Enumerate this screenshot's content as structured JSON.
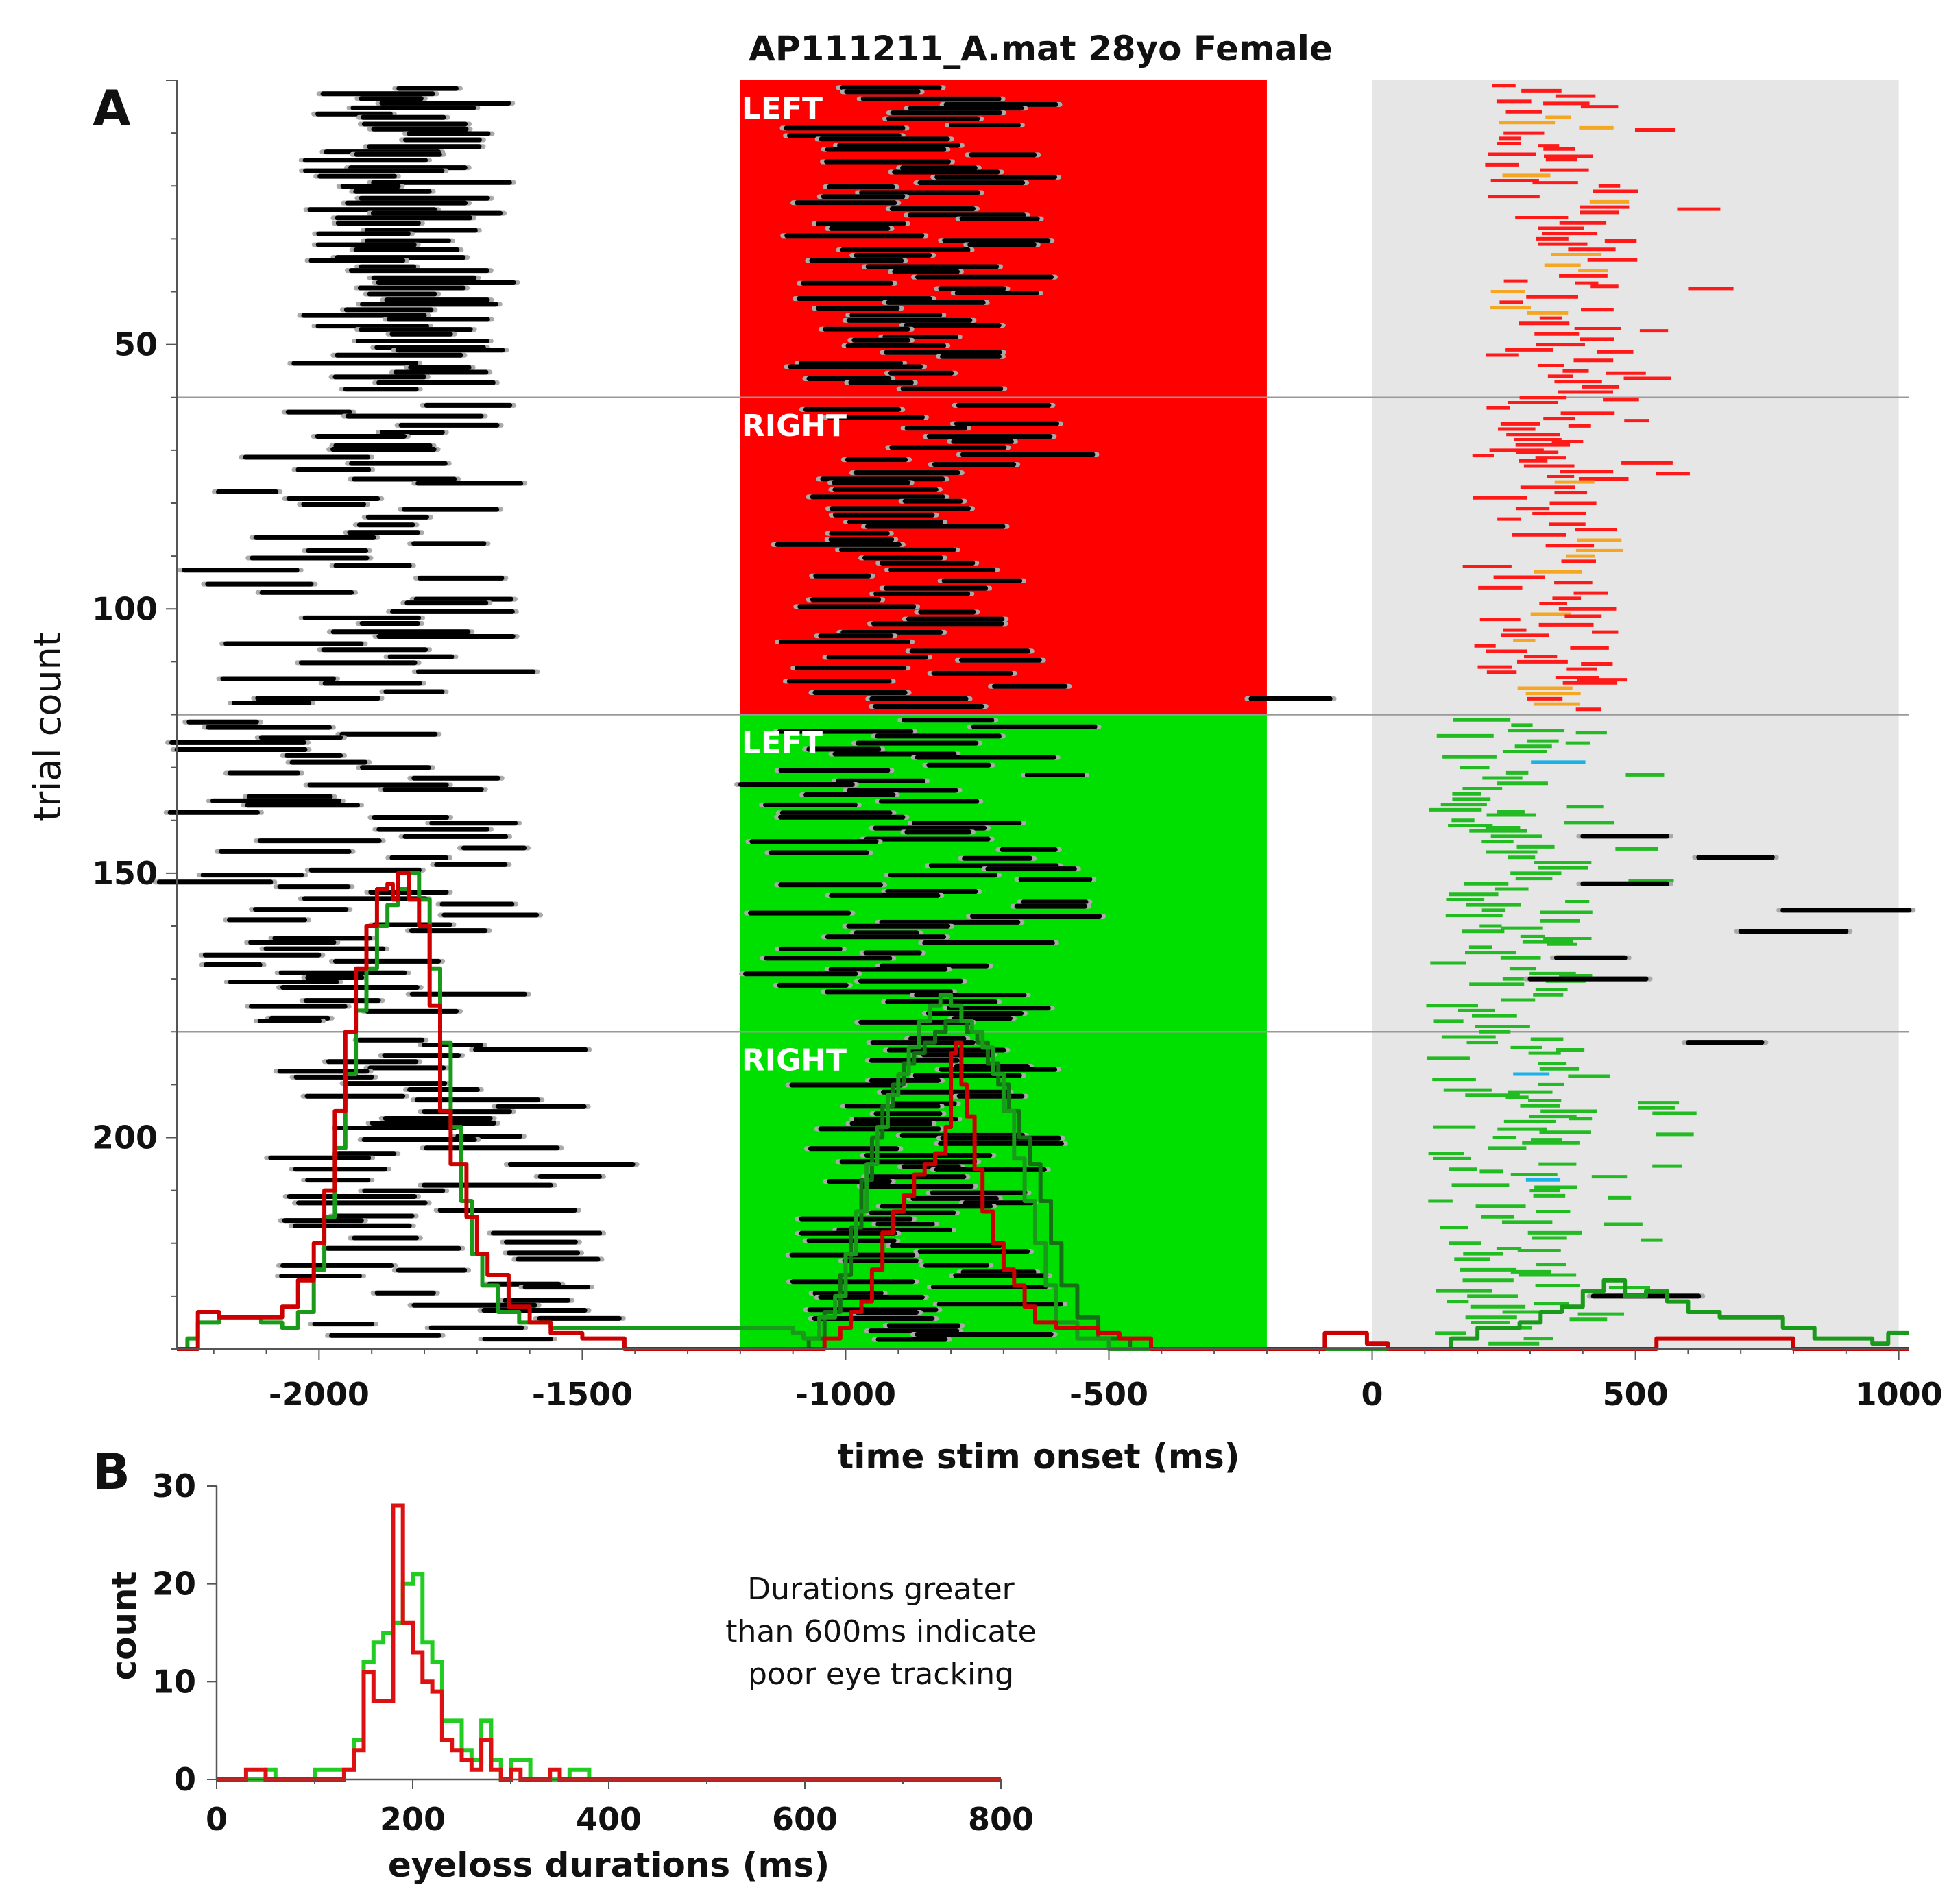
{
  "chart_data": [
    {
      "panel": "A",
      "type": "raster",
      "title": "AP111211_A.mat 28yo Female",
      "xlabel": "time stim onset (ms)",
      "ylabel": "trial count",
      "xlim": [
        -2270,
        1020
      ],
      "ylim": [
        0,
        240
      ],
      "x_ticks": [
        -2000,
        -1500,
        -1000,
        -500,
        0,
        500,
        1000
      ],
      "y_ticks": [
        50,
        100,
        150,
        200
      ],
      "blocks": [
        {
          "label": "LEFT",
          "trial_start": 0,
          "trial_end": 60,
          "color": "#ff0000"
        },
        {
          "label": "RIGHT",
          "trial_start": 60,
          "trial_end": 120,
          "color": "#ff0000"
        },
        {
          "label": "LEFT",
          "trial_start": 120,
          "trial_end": 180,
          "color": "#00e000"
        },
        {
          "label": "RIGHT",
          "trial_start": 180,
          "trial_end": 240,
          "color": "#00e000"
        }
      ],
      "stim_window": [
        -1200,
        -200
      ],
      "response_window": [
        0,
        1000
      ],
      "response_bg_color": "#e6e6e6",
      "block_separator_trials": [
        60,
        120,
        180
      ],
      "series_colors": {
        "eyeloss": "#000000",
        "eyeloss_edge": "#aaaaaa",
        "response_red": "#ff1a1a",
        "response_orange": "#f5a623",
        "response_green": "#22bb22",
        "response_blue": "#1ab0e8",
        "density_red": "#cc0000",
        "density_green": "#1a9a1a",
        "density_darkgreen": "#157015"
      },
      "density_curves": [
        {
          "name": "red",
          "points": [
            [
              -2270,
              240
            ],
            [
              -2230,
              233
            ],
            [
              -2190,
              234
            ],
            [
              -2150,
              234
            ],
            [
              -2110,
              234
            ],
            [
              -2070,
              232
            ],
            [
              -2040,
              227
            ],
            [
              -2010,
              220
            ],
            [
              -1990,
              210
            ],
            [
              -1970,
              195
            ],
            [
              -1950,
              180
            ],
            [
              -1930,
              168
            ],
            [
              -1910,
              160
            ],
            [
              -1890,
              153
            ],
            [
              -1870,
              152
            ],
            [
              -1860,
              155
            ],
            [
              -1850,
              150
            ],
            [
              -1830,
              155
            ],
            [
              -1810,
              160
            ],
            [
              -1790,
              175
            ],
            [
              -1770,
              195
            ],
            [
              -1750,
              205
            ],
            [
              -1720,
              215
            ],
            [
              -1700,
              222
            ],
            [
              -1680,
              226
            ],
            [
              -1640,
              232
            ],
            [
              -1600,
              235
            ],
            [
              -1560,
              237
            ],
            [
              -1500,
              238
            ],
            [
              -1420,
              240
            ],
            [
              -1100,
              240
            ],
            [
              -1060,
              240
            ],
            [
              -1040,
              238
            ],
            [
              -1010,
              236
            ],
            [
              -990,
              233
            ],
            [
              -970,
              231
            ],
            [
              -950,
              225
            ],
            [
              -930,
              218
            ],
            [
              -910,
              214
            ],
            [
              -890,
              211
            ],
            [
              -870,
              207
            ],
            [
              -850,
              205
            ],
            [
              -830,
              203
            ],
            [
              -810,
              198
            ],
            [
              -800,
              184
            ],
            [
              -790,
              182
            ],
            [
              -780,
              190
            ],
            [
              -770,
              196
            ],
            [
              -755,
              206
            ],
            [
              -740,
              214
            ],
            [
              -720,
              220
            ],
            [
              -700,
              225
            ],
            [
              -680,
              228
            ],
            [
              -660,
              232
            ],
            [
              -640,
              235
            ],
            [
              -600,
              236
            ],
            [
              -560,
              236
            ],
            [
              -520,
              237
            ],
            [
              -480,
              238
            ],
            [
              -420,
              240
            ],
            [
              -100,
              240
            ],
            [
              -90,
              237
            ],
            [
              -40,
              237
            ],
            [
              -10,
              239
            ],
            [
              30,
              240
            ],
            [
              500,
              240
            ],
            [
              540,
              238
            ],
            [
              780,
              238
            ],
            [
              800,
              240
            ],
            [
              1020,
              240
            ]
          ]
        },
        {
          "name": "green",
          "points": [
            [
              -2270,
              240
            ],
            [
              -2250,
              238
            ],
            [
              -2230,
              235
            ],
            [
              -2190,
              234
            ],
            [
              -2150,
              234
            ],
            [
              -2110,
              235
            ],
            [
              -2070,
              236
            ],
            [
              -2040,
              233
            ],
            [
              -2010,
              225
            ],
            [
              -1990,
              215
            ],
            [
              -1970,
              202
            ],
            [
              -1950,
              188
            ],
            [
              -1930,
              176
            ],
            [
              -1910,
              168
            ],
            [
              -1890,
              160
            ],
            [
              -1870,
              156
            ],
            [
              -1850,
              153
            ],
            [
              -1830,
              150
            ],
            [
              -1810,
              155
            ],
            [
              -1790,
              168
            ],
            [
              -1770,
              182
            ],
            [
              -1750,
              198
            ],
            [
              -1730,
              212
            ],
            [
              -1710,
              222
            ],
            [
              -1690,
              228
            ],
            [
              -1660,
              233
            ],
            [
              -1620,
              235
            ],
            [
              -1560,
              236
            ],
            [
              -1500,
              236
            ],
            [
              -1100,
              237
            ],
            [
              -1080,
              238
            ],
            [
              -1050,
              234
            ],
            [
              -1020,
              230
            ],
            [
              -1000,
              222
            ],
            [
              -980,
              214
            ],
            [
              -960,
              205
            ],
            [
              -940,
              198
            ],
            [
              -920,
              192
            ],
            [
              -900,
              188
            ],
            [
              -880,
              183
            ],
            [
              -860,
              178
            ],
            [
              -840,
              175
            ],
            [
              -820,
              173
            ],
            [
              -800,
              175
            ],
            [
              -780,
              178
            ],
            [
              -760,
              180
            ],
            [
              -740,
              183
            ],
            [
              -720,
              188
            ],
            [
              -700,
              195
            ],
            [
              -680,
              204
            ],
            [
              -660,
              212
            ],
            [
              -640,
              220
            ],
            [
              -620,
              228
            ],
            [
              -600,
              235
            ],
            [
              -560,
              238
            ],
            [
              -500,
              240
            ],
            [
              100,
              240
            ],
            [
              150,
              238
            ],
            [
              200,
              236
            ],
            [
              280,
              235
            ],
            [
              320,
              233
            ],
            [
              360,
              232
            ],
            [
              400,
              229
            ],
            [
              440,
              227
            ],
            [
              480,
              230
            ],
            [
              520,
              229
            ],
            [
              560,
              231
            ],
            [
              600,
              233
            ],
            [
              660,
              234
            ],
            [
              720,
              234
            ],
            [
              780,
              236
            ],
            [
              840,
              238
            ],
            [
              900,
              238
            ],
            [
              950,
              239
            ],
            [
              980,
              237
            ],
            [
              1020,
              237
            ]
          ]
        },
        {
          "name": "darkgreen",
          "points": [
            [
              -1100,
              240
            ],
            [
              -1070,
              238
            ],
            [
              -1040,
              233
            ],
            [
              -1010,
              226
            ],
            [
              -990,
              217
            ],
            [
              -970,
              208
            ],
            [
              -950,
              200
            ],
            [
              -930,
              194
            ],
            [
              -910,
              190
            ],
            [
              -890,
              186
            ],
            [
              -870,
              184
            ],
            [
              -850,
              182
            ],
            [
              -830,
              180
            ],
            [
              -810,
              178
            ],
            [
              -790,
              178
            ],
            [
              -770,
              180
            ],
            [
              -750,
              182
            ],
            [
              -730,
              186
            ],
            [
              -710,
              190
            ],
            [
              -690,
              195
            ],
            [
              -670,
              200
            ],
            [
              -650,
              205
            ],
            [
              -630,
              212
            ],
            [
              -610,
              220
            ],
            [
              -590,
              228
            ],
            [
              -560,
              234
            ],
            [
              -520,
              238
            ],
            [
              -460,
              240
            ]
          ]
        }
      ],
      "eyeloss_trial_groups": [
        {
          "block": 0,
          "xrange": [
            -1950,
            -1750
          ],
          "n": 58
        },
        {
          "block": 0,
          "xrange": [
            -1020,
            -700
          ],
          "n": 58
        },
        {
          "block": 1,
          "xrange": [
            -2150,
            -1700
          ],
          "n": 46
        },
        {
          "block": 1,
          "xrange": [
            -1020,
            -650
          ],
          "n": 50
        },
        {
          "block": 2,
          "xrange": [
            -2200,
            -1650
          ],
          "n": 54
        },
        {
          "block": 2,
          "xrange": [
            -1100,
            -600
          ],
          "n": 58
        },
        {
          "block": 3,
          "xrange": [
            -2000,
            -1500
          ],
          "n": 54
        },
        {
          "block": 3,
          "xrange": [
            -1000,
            -700
          ],
          "n": 58
        }
      ]
    },
    {
      "panel": "B",
      "type": "histogram",
      "xlabel": "eyeloss durations (ms)",
      "ylabel": "count",
      "xlim": [
        0,
        800
      ],
      "ylim": [
        0,
        30
      ],
      "x_ticks": [
        0,
        200,
        400,
        600,
        800
      ],
      "y_ticks": [
        0,
        10,
        20,
        30
      ],
      "bin_width": 10,
      "annotation": [
        "Durations greater",
        "than 600ms indicate",
        "poor eye tracking"
      ],
      "series": [
        {
          "name": "green",
          "color": "#22cc22",
          "bins_start": [
            0,
            10,
            20,
            30,
            40,
            50,
            60,
            70,
            80,
            90,
            100,
            110,
            120,
            130,
            140,
            150,
            160,
            170,
            180,
            190,
            200,
            210,
            220,
            230,
            240,
            250,
            260,
            270,
            280,
            290,
            300,
            310,
            320,
            330,
            340,
            350,
            360,
            370,
            380,
            390,
            400
          ],
          "values": [
            0,
            0,
            0,
            0,
            0,
            1,
            0,
            0,
            0,
            0,
            1,
            1,
            1,
            1,
            4,
            12,
            14,
            15,
            16,
            20,
            21,
            14,
            12,
            6,
            6,
            3,
            2,
            6,
            2,
            0,
            2,
            2,
            0,
            0,
            0,
            0,
            1,
            1,
            0,
            0,
            0
          ]
        },
        {
          "name": "red",
          "color": "#dd1111",
          "bins_start": [
            0,
            10,
            20,
            30,
            40,
            50,
            60,
            70,
            80,
            90,
            100,
            110,
            120,
            130,
            140,
            150,
            160,
            170,
            180,
            190,
            200,
            210,
            220,
            230,
            240,
            250,
            260,
            270,
            280,
            290,
            300,
            310,
            320,
            330,
            340,
            350,
            360,
            370,
            380,
            390,
            400
          ],
          "values": [
            0,
            0,
            0,
            1,
            1,
            0,
            0,
            0,
            0,
            0,
            0,
            0,
            0,
            1,
            3,
            11,
            8,
            8,
            28,
            16,
            13,
            10,
            9,
            4,
            3,
            2,
            1,
            4,
            1,
            0,
            1,
            0,
            0,
            0,
            1,
            0,
            0,
            0,
            0,
            0,
            0
          ]
        }
      ]
    }
  ]
}
